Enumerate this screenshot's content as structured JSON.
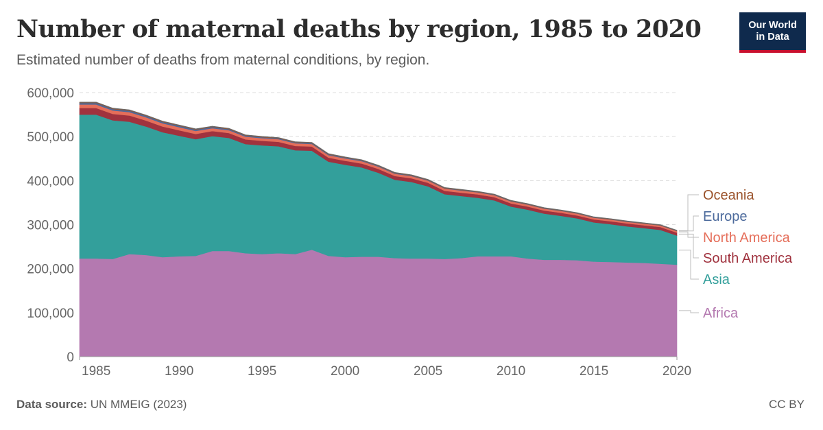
{
  "title": "Number of maternal deaths by region, 1985 to 2020",
  "subtitle": "Estimated number of deaths from maternal conditions, by region.",
  "logo": {
    "line1": "Our World",
    "line2": "in Data"
  },
  "footer": {
    "source_label": "Data source:",
    "source_text": "UN MMEIG (2023)",
    "license": "CC BY"
  },
  "chart_data": {
    "type": "area",
    "stacked": true,
    "x": [
      1985,
      1986,
      1987,
      1988,
      1989,
      1990,
      1991,
      1992,
      1993,
      1994,
      1995,
      1996,
      1997,
      1998,
      1999,
      2000,
      2001,
      2002,
      2003,
      2004,
      2005,
      2006,
      2007,
      2008,
      2009,
      2010,
      2011,
      2012,
      2013,
      2014,
      2015,
      2016,
      2017,
      2018,
      2019,
      2020
    ],
    "x_ticks": [
      "1985",
      "1990",
      "1995",
      "2000",
      "2005",
      "2010",
      "2015",
      "2020"
    ],
    "y_ticks": [
      "0",
      "100,000",
      "200,000",
      "300,000",
      "400,000",
      "500,000",
      "600,000"
    ],
    "ylim": [
      0,
      600000
    ],
    "grid": "horizontal dashed",
    "legend": "right, labels at series ends",
    "series": [
      {
        "name": "Africa",
        "color": "#b479b0",
        "values": [
          223000,
          222000,
          233000,
          231000,
          226000,
          228000,
          229000,
          240000,
          240000,
          235000,
          233000,
          235000,
          233000,
          243000,
          229000,
          226000,
          227000,
          227000,
          224000,
          223000,
          223000,
          222000,
          224000,
          228000,
          228000,
          228000,
          223000,
          220000,
          220000,
          219000,
          216000,
          215000,
          214000,
          213000,
          211000,
          209000
        ]
      },
      {
        "name": "Asia",
        "color": "#339f9b",
        "values": [
          327000,
          315000,
          301000,
          292000,
          284000,
          274000,
          265000,
          261000,
          257000,
          248000,
          247000,
          243000,
          236000,
          225000,
          214000,
          210000,
          203000,
          191000,
          178000,
          174000,
          164000,
          147000,
          141000,
          133000,
          127000,
          113000,
          111000,
          105000,
          100000,
          95000,
          89000,
          86000,
          82000,
          79000,
          77000,
          66000
        ]
      },
      {
        "name": "South America",
        "color": "#a0323e",
        "values": [
          15000,
          14500,
          14000,
          13500,
          13000,
          12500,
          12000,
          11500,
          11000,
          10700,
          10400,
          10100,
          9800,
          9500,
          9300,
          9100,
          8900,
          8700,
          8500,
          8300,
          8100,
          7900,
          7700,
          7500,
          7300,
          7200,
          7100,
          7000,
          6900,
          6800,
          6700,
          6600,
          6600,
          6500,
          6500,
          6700
        ]
      },
      {
        "name": "North America",
        "color": "#e56e5a",
        "values": [
          8000,
          7800,
          7600,
          7400,
          7200,
          7000,
          6800,
          6600,
          6400,
          6200,
          6000,
          5900,
          5800,
          5700,
          5600,
          5500,
          5400,
          5300,
          5200,
          5100,
          5000,
          4900,
          4800,
          4700,
          4600,
          4500,
          4400,
          4300,
          4200,
          4100,
          4000,
          3900,
          3800,
          3700,
          3600,
          3500
        ]
      },
      {
        "name": "Europe",
        "color": "#4c6a9c",
        "values": [
          3500,
          3400,
          3300,
          3200,
          3100,
          3000,
          2900,
          2800,
          2600,
          2400,
          2200,
          2000,
          1900,
          1800,
          1700,
          1600,
          1500,
          1400,
          1300,
          1200,
          1100,
          1000,
          950,
          900,
          850,
          800,
          760,
          720,
          680,
          640,
          600,
          570,
          540,
          520,
          500,
          500
        ]
      },
      {
        "name": "Oceania",
        "color": "#9a5129",
        "values": [
          1600,
          1600,
          1600,
          1600,
          1550,
          1550,
          1500,
          1500,
          1500,
          1450,
          1450,
          1400,
          1400,
          1400,
          1350,
          1350,
          1300,
          1300,
          1300,
          1250,
          1250,
          1200,
          1200,
          1200,
          1150,
          1150,
          1100,
          1100,
          1100,
          1050,
          1050,
          1000,
          1000,
          1000,
          1000,
          1000
        ]
      }
    ]
  }
}
